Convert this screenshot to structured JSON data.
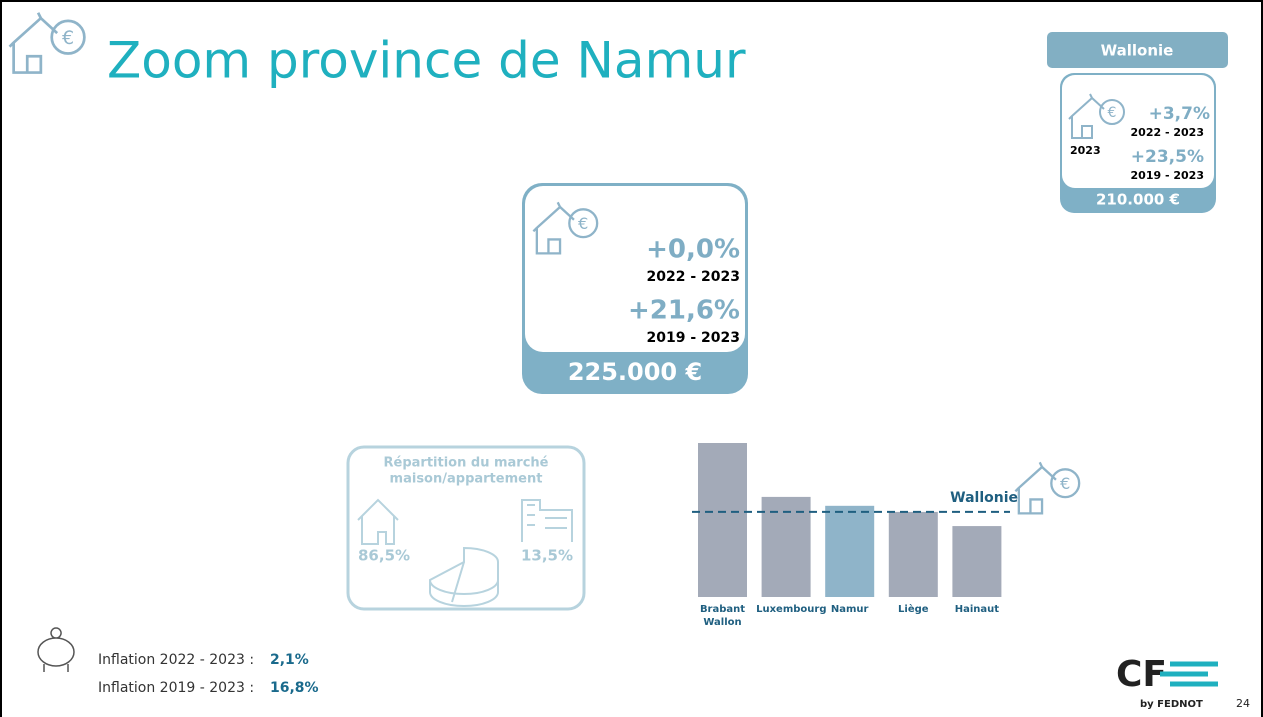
{
  "header": {
    "title": "Zoom province de Namur"
  },
  "wallonie_card": {
    "label": "Wallonie",
    "change_1": "+3,7%",
    "period_1": "2022 - 2023",
    "year": "2023",
    "change_2": "+23,5%",
    "period_2": "2019 - 2023",
    "price": "210.000 €"
  },
  "namur_card": {
    "change_1": "+0,0%",
    "period_1": "2022 - 2023",
    "change_2": "+21,6%",
    "period_2": "2019 - 2023",
    "price": "225.000 €"
  },
  "market": {
    "title_1": "Répartition du marché",
    "title_2": "maison/appartement",
    "house": "86,5%",
    "apartment": "13,5%"
  },
  "inflation": [
    {
      "label": "Inflation 2022 - 2023 :",
      "value": "2,1%"
    },
    {
      "label": "Inflation 2019 - 2023 :",
      "value": "16,8%"
    }
  ],
  "footer": {
    "logo": "CF",
    "logo_sub": "by FEDNOT",
    "page": "24"
  },
  "chart_data": {
    "type": "bar",
    "categories": [
      "Brabant Wallon",
      "Luxembourg",
      "Namur",
      "Liège",
      "Hainaut"
    ],
    "values": [
      380000,
      247000,
      225000,
      210000,
      175000
    ],
    "colors": [
      "#a3aab8",
      "#a3aab8",
      "#8fb4c9",
      "#a3aab8",
      "#a3aab8"
    ],
    "ylim": [
      0,
      380000
    ],
    "reference": {
      "label": "Wallonie",
      "value": 210000,
      "color": "#1f5f80"
    }
  }
}
